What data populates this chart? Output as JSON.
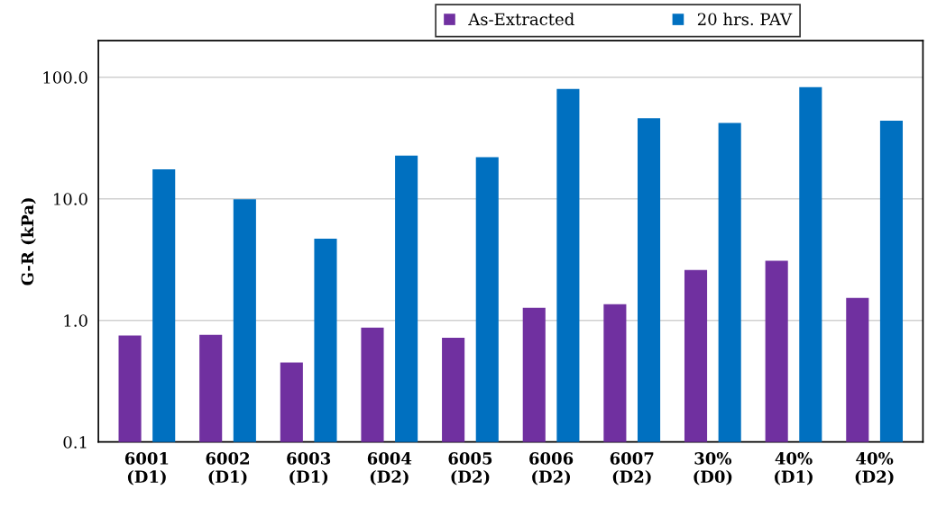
{
  "chart_data": {
    "type": "bar",
    "ylabel": "G-R (kPa)",
    "log": true,
    "grid": "y",
    "legend": "top",
    "categories": [
      "6001\n(D1)",
      "6002\n(D1)",
      "6003\n(D1)",
      "6004\n(D2)",
      "6005\n(D2)",
      "6006\n(D2)",
      "6007\n(D2)",
      "30%\n(D0)",
      "40%\n(D1)",
      "40%\n(D2)"
    ],
    "series": [
      {
        "name": "As-Extracted",
        "color": "#7030a0",
        "values": [
          0.75,
          0.76,
          0.45,
          0.87,
          0.72,
          1.27,
          1.36,
          2.6,
          3.1,
          1.53
        ]
      },
      {
        "name": "20 hrs. PAV",
        "color": "#0070c0",
        "values": [
          17.5,
          9.9,
          4.7,
          22.7,
          22,
          80,
          46,
          42,
          83,
          44
        ]
      }
    ],
    "ylim": [
      0.1,
      200
    ],
    "yticks": [
      {
        "value": 0.1,
        "label": "0.1"
      },
      {
        "value": 1,
        "label": "1.0"
      },
      {
        "value": 10,
        "label": "10.0"
      },
      {
        "value": 100,
        "label": "100.0"
      }
    ]
  }
}
